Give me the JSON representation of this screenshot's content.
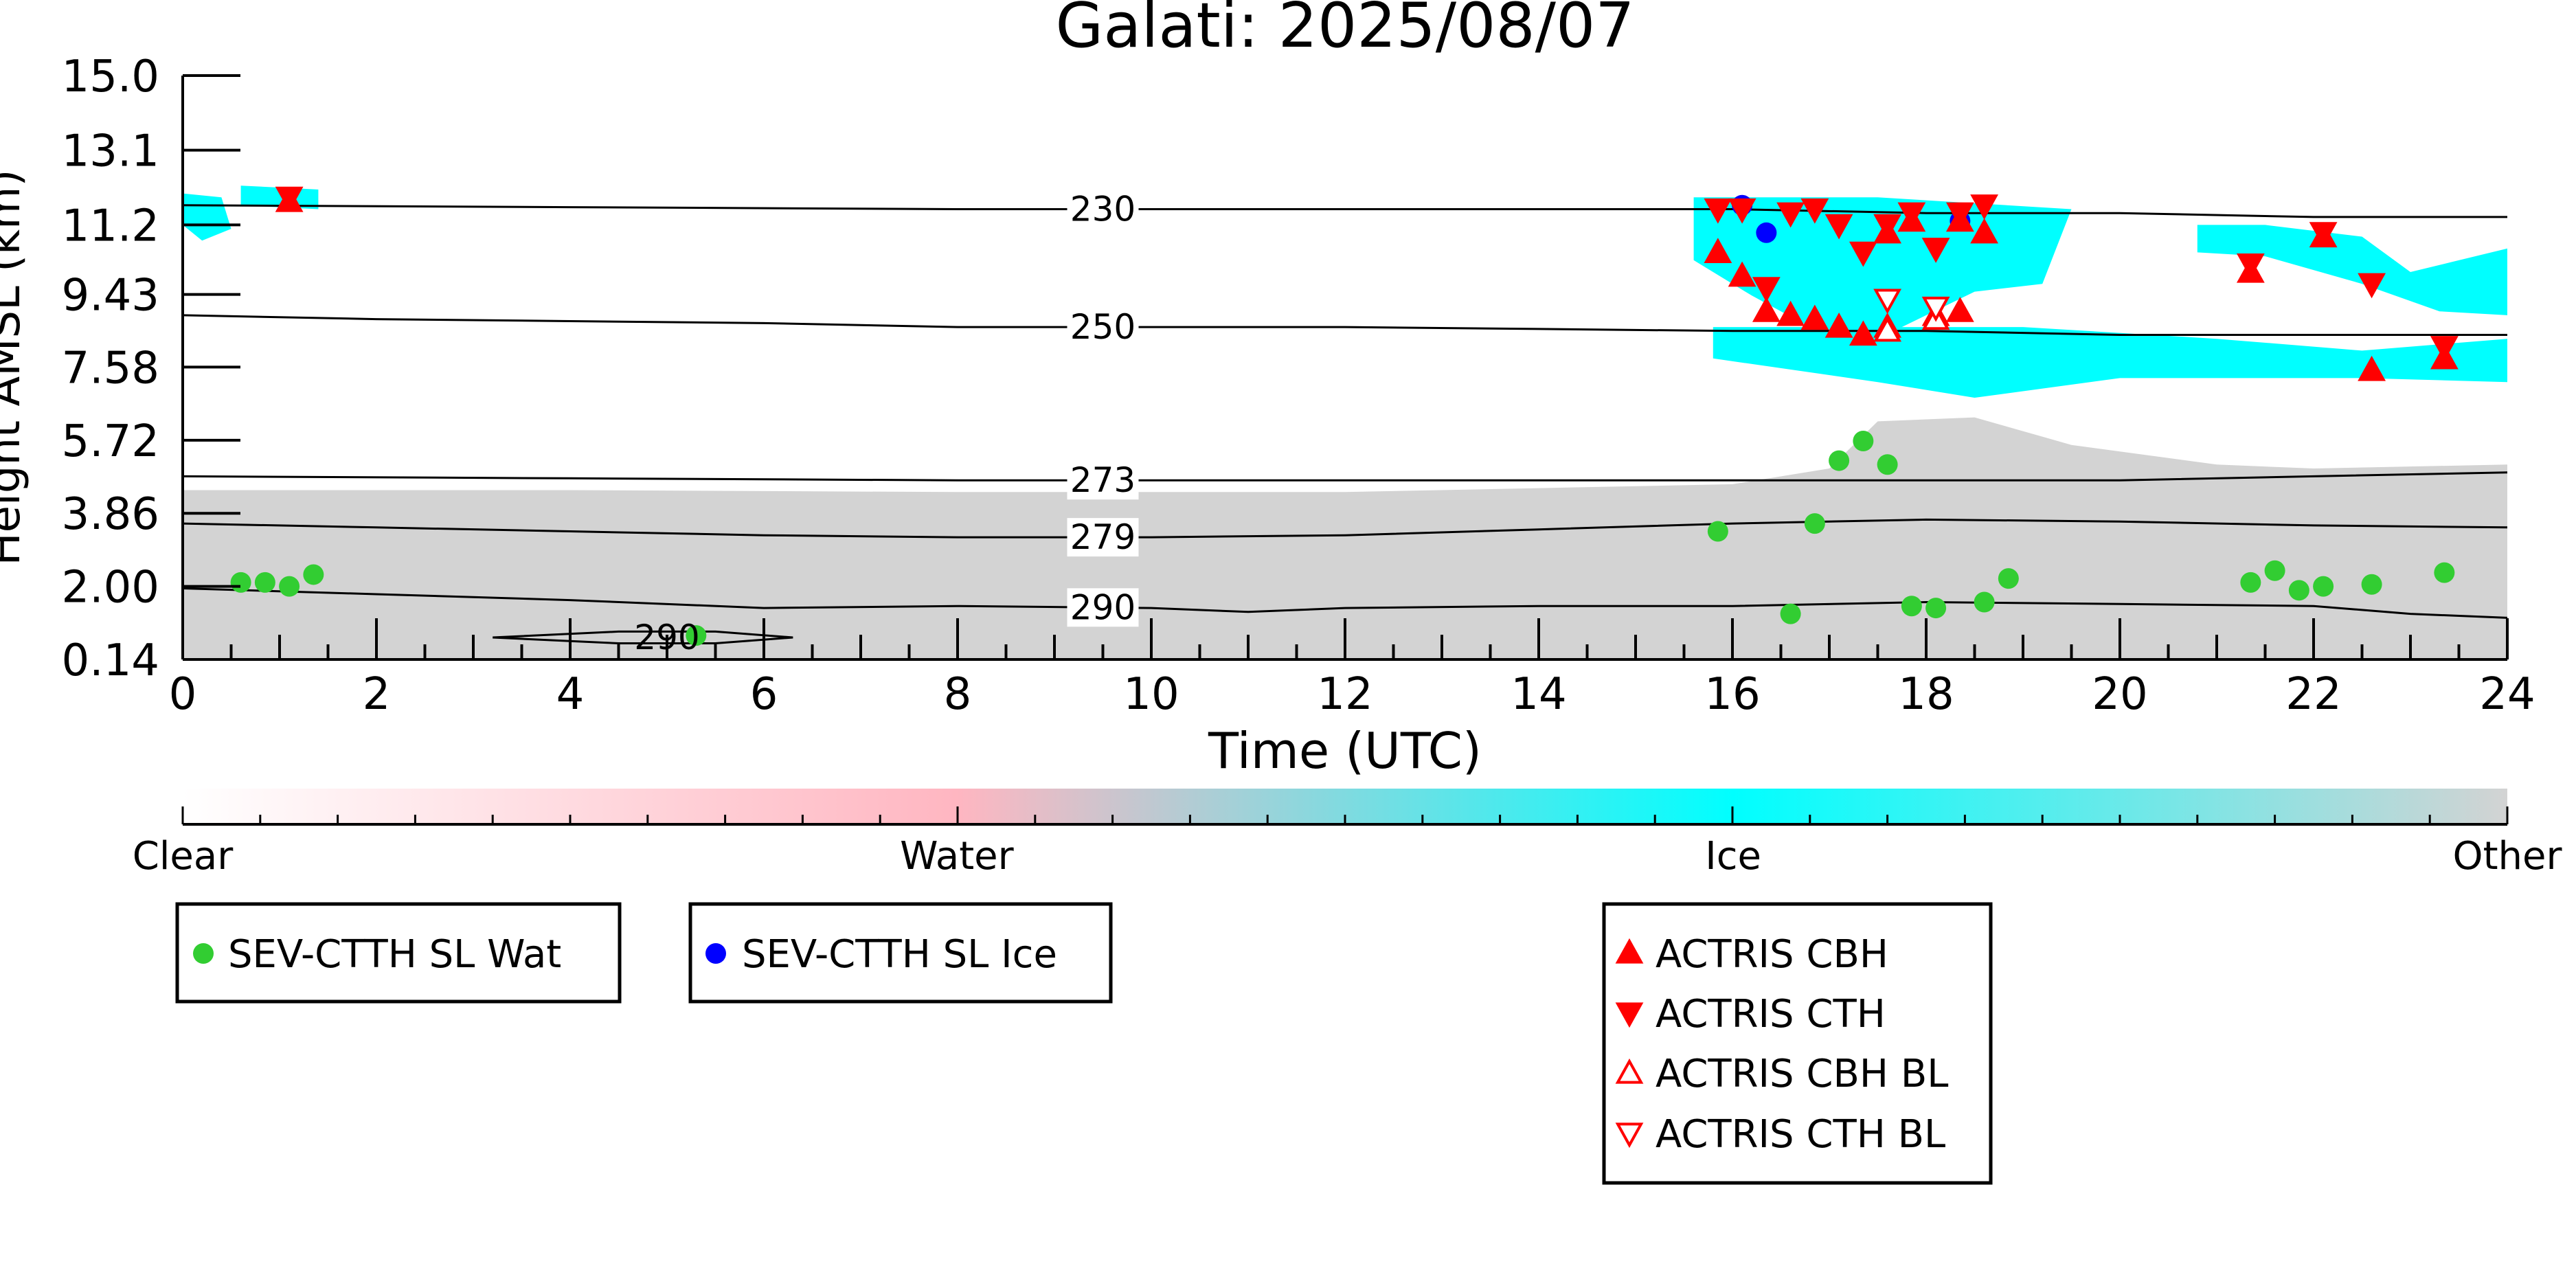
{
  "colors": {
    "clear": "#ffffff",
    "water": "#ffb6c1",
    "ice": "#00ffff",
    "other": "#d3d3d3",
    "sev_wat": "#32cd32",
    "sev_ice": "#0000ff",
    "actris": "#ff0000"
  },
  "chart_data": {
    "type": "scatter",
    "title": "Galati: 2025/08/07",
    "xlabel": "Time (UTC)",
    "ylabel": "Height AMSL (km)",
    "xlim": [
      0,
      24
    ],
    "ylim": [
      0.14,
      15.0
    ],
    "x_ticks": [
      "0",
      "2",
      "4",
      "6",
      "8",
      "10",
      "12",
      "14",
      "16",
      "18",
      "20",
      "22",
      "24"
    ],
    "y_ticks": [
      {
        "value": 15.0,
        "label": "15.0"
      },
      {
        "value": 13.1,
        "label": "13.1"
      },
      {
        "value": 11.2,
        "label": "11.2"
      },
      {
        "value": 9.43,
        "label": "9.43"
      },
      {
        "value": 7.58,
        "label": "7.58"
      },
      {
        "value": 5.72,
        "label": "5.72"
      },
      {
        "value": 3.86,
        "label": "3.86"
      },
      {
        "value": 2.0,
        "label": "2.00"
      },
      {
        "value": 0.14,
        "label": "0.14"
      }
    ],
    "colorbar": {
      "labels": [
        {
          "value": 0.0,
          "label": "Clear"
        },
        {
          "value": 0.333,
          "label": "Water"
        },
        {
          "value": 0.667,
          "label": "Ice"
        },
        {
          "value": 1.0,
          "label": "Other"
        }
      ]
    },
    "contours": [
      {
        "label": "230",
        "label_x": 9.5,
        "points": [
          [
            0,
            11.7
          ],
          [
            4,
            11.65
          ],
          [
            8,
            11.6
          ],
          [
            10,
            11.6
          ],
          [
            14,
            11.6
          ],
          [
            16,
            11.6
          ],
          [
            18,
            11.5
          ],
          [
            20,
            11.5
          ],
          [
            22,
            11.4
          ],
          [
            24,
            11.4
          ]
        ]
      },
      {
        "label": "250",
        "label_x": 9.5,
        "points": [
          [
            0,
            8.9
          ],
          [
            2,
            8.8
          ],
          [
            4,
            8.75
          ],
          [
            6,
            8.7
          ],
          [
            8,
            8.6
          ],
          [
            10,
            8.6
          ],
          [
            12,
            8.6
          ],
          [
            14,
            8.55
          ],
          [
            16,
            8.5
          ],
          [
            18,
            8.5
          ],
          [
            20,
            8.4
          ],
          [
            22,
            8.4
          ],
          [
            24,
            8.4
          ]
        ]
      },
      {
        "label": "273",
        "label_x": 9.5,
        "points": [
          [
            0,
            4.8
          ],
          [
            4,
            4.75
          ],
          [
            8,
            4.7
          ],
          [
            10,
            4.7
          ],
          [
            14,
            4.7
          ],
          [
            16,
            4.7
          ],
          [
            18,
            4.7
          ],
          [
            20,
            4.7
          ],
          [
            22,
            4.8
          ],
          [
            24,
            4.9
          ]
        ]
      },
      {
        "label": "279",
        "label_x": 9.5,
        "points": [
          [
            0,
            3.6
          ],
          [
            2,
            3.5
          ],
          [
            4,
            3.4
          ],
          [
            6,
            3.3
          ],
          [
            8,
            3.25
          ],
          [
            10,
            3.25
          ],
          [
            12,
            3.3
          ],
          [
            14,
            3.45
          ],
          [
            16,
            3.6
          ],
          [
            18,
            3.7
          ],
          [
            20,
            3.65
          ],
          [
            22,
            3.55
          ],
          [
            24,
            3.5
          ]
        ]
      },
      {
        "label": "290",
        "label_x": 9.5,
        "points": [
          [
            0,
            1.95
          ],
          [
            2,
            1.8
          ],
          [
            4,
            1.65
          ],
          [
            6,
            1.45
          ],
          [
            8,
            1.5
          ],
          [
            10,
            1.45
          ],
          [
            11,
            1.35
          ],
          [
            12,
            1.45
          ],
          [
            14,
            1.5
          ],
          [
            16,
            1.5
          ],
          [
            18,
            1.6
          ],
          [
            20,
            1.55
          ],
          [
            22,
            1.5
          ],
          [
            23,
            1.3
          ],
          [
            24,
            1.2
          ]
        ]
      },
      {
        "label": "290",
        "label_x": 5.0,
        "loop": true,
        "points": [
          [
            3.2,
            0.7
          ],
          [
            4.5,
            0.85
          ],
          [
            5.5,
            0.85
          ],
          [
            6.3,
            0.7
          ],
          [
            5.5,
            0.55
          ],
          [
            4.5,
            0.55
          ],
          [
            3.2,
            0.7
          ]
        ]
      }
    ],
    "regions": [
      {
        "class": "other",
        "points": [
          [
            0,
            4.45
          ],
          [
            4,
            4.45
          ],
          [
            8,
            4.4
          ],
          [
            12,
            4.4
          ],
          [
            14,
            4.5
          ],
          [
            16,
            4.6
          ],
          [
            17,
            5.0
          ],
          [
            17.5,
            6.2
          ],
          [
            18.5,
            6.3
          ],
          [
            19.5,
            5.6
          ],
          [
            21,
            5.1
          ],
          [
            22,
            5.0
          ],
          [
            24,
            5.1
          ],
          [
            24,
            0.14
          ],
          [
            0,
            0.14
          ]
        ]
      },
      {
        "class": "ice",
        "points": [
          [
            0,
            12.0
          ],
          [
            0.4,
            11.9
          ],
          [
            0.5,
            11.1
          ],
          [
            0.2,
            10.8
          ],
          [
            0,
            11.2
          ]
        ]
      },
      {
        "class": "ice",
        "points": [
          [
            0.6,
            12.2
          ],
          [
            1.4,
            12.1
          ],
          [
            1.4,
            11.6
          ],
          [
            0.6,
            11.7
          ]
        ]
      },
      {
        "class": "ice",
        "points": [
          [
            15.6,
            11.9
          ],
          [
            17.5,
            11.9
          ],
          [
            19.5,
            11.6
          ],
          [
            19.2,
            9.7
          ],
          [
            18.5,
            9.5
          ],
          [
            18.0,
            8.9
          ],
          [
            17.5,
            8.3
          ],
          [
            16.8,
            8.6
          ],
          [
            16.2,
            9.4
          ],
          [
            15.6,
            10.3
          ]
        ]
      },
      {
        "class": "ice",
        "points": [
          [
            15.8,
            8.6
          ],
          [
            19,
            8.6
          ],
          [
            21,
            8.3
          ],
          [
            22.5,
            8.0
          ],
          [
            24,
            8.3
          ],
          [
            24,
            7.2
          ],
          [
            22.5,
            7.3
          ],
          [
            20,
            7.3
          ],
          [
            18.5,
            6.8
          ],
          [
            17.5,
            7.2
          ],
          [
            15.8,
            7.8
          ]
        ]
      },
      {
        "class": "ice",
        "points": [
          [
            20.8,
            11.2
          ],
          [
            21.5,
            11.2
          ],
          [
            22.5,
            10.9
          ],
          [
            23.0,
            10.0
          ],
          [
            24,
            10.6
          ],
          [
            24,
            8.9
          ],
          [
            23.3,
            9.0
          ],
          [
            22.5,
            9.7
          ],
          [
            21.5,
            10.4
          ],
          [
            20.8,
            10.5
          ]
        ]
      }
    ],
    "series": [
      {
        "name": "SEV-CTTH SL Wat",
        "marker": "circle",
        "points": [
          [
            0.6,
            2.1
          ],
          [
            0.85,
            2.1
          ],
          [
            1.1,
            2.0
          ],
          [
            1.35,
            2.3
          ],
          [
            15.85,
            3.4
          ],
          [
            16.6,
            1.3
          ],
          [
            16.85,
            3.6
          ],
          [
            17.1,
            5.2
          ],
          [
            17.35,
            5.7
          ],
          [
            17.6,
            5.1
          ],
          [
            17.85,
            1.5
          ],
          [
            18.1,
            1.45
          ],
          [
            18.6,
            1.6
          ],
          [
            18.85,
            2.2
          ],
          [
            21.35,
            2.1
          ],
          [
            21.6,
            2.4
          ],
          [
            21.85,
            1.9
          ],
          [
            22.1,
            2.0
          ],
          [
            22.6,
            2.05
          ],
          [
            23.35,
            2.35
          ],
          [
            5.3,
            0.75
          ]
        ]
      },
      {
        "name": "SEV-CTTH SL Ice",
        "marker": "circle",
        "points": [
          [
            16.1,
            11.7
          ],
          [
            16.35,
            11.0
          ],
          [
            18.35,
            11.3
          ]
        ]
      },
      {
        "name": "ACTRIS CBH",
        "marker": "triangle-up",
        "points": [
          [
            1.1,
            11.8
          ],
          [
            15.85,
            10.5
          ],
          [
            16.1,
            9.9
          ],
          [
            16.35,
            9.0
          ],
          [
            16.6,
            8.9
          ],
          [
            16.85,
            8.8
          ],
          [
            17.1,
            8.6
          ],
          [
            17.35,
            8.4
          ],
          [
            17.6,
            8.6
          ],
          [
            17.6,
            11.0
          ],
          [
            17.85,
            11.3
          ],
          [
            18.1,
            8.9
          ],
          [
            18.35,
            9.0
          ],
          [
            18.35,
            11.3
          ],
          [
            18.6,
            11.0
          ],
          [
            21.35,
            10.0
          ],
          [
            22.1,
            10.9
          ],
          [
            22.6,
            7.5
          ],
          [
            23.35,
            7.8
          ]
        ]
      },
      {
        "name": "ACTRIS CTH",
        "marker": "triangle-down",
        "points": [
          [
            1.1,
            11.9
          ],
          [
            15.85,
            11.6
          ],
          [
            16.1,
            11.6
          ],
          [
            16.35,
            9.6
          ],
          [
            16.6,
            11.5
          ],
          [
            16.85,
            11.6
          ],
          [
            17.1,
            11.2
          ],
          [
            17.35,
            10.5
          ],
          [
            17.6,
            11.2
          ],
          [
            17.85,
            11.5
          ],
          [
            18.1,
            10.6
          ],
          [
            18.35,
            11.5
          ],
          [
            18.6,
            11.7
          ],
          [
            21.35,
            10.2
          ],
          [
            22.1,
            11.0
          ],
          [
            22.6,
            9.7
          ],
          [
            23.35,
            8.1
          ]
        ]
      },
      {
        "name": "ACTRIS CBH BL",
        "marker": "triangle-up-open",
        "points": [
          [
            17.6,
            8.5
          ],
          [
            18.1,
            8.8
          ]
        ]
      },
      {
        "name": "ACTRIS CTH BL",
        "marker": "triangle-down-open",
        "points": [
          [
            17.6,
            9.3
          ],
          [
            18.1,
            9.1
          ]
        ]
      }
    ],
    "legends": [
      {
        "entries": [
          "SEV-CTTH SL Wat"
        ]
      },
      {
        "entries": [
          "SEV-CTTH SL Ice"
        ]
      },
      {
        "entries": [
          "ACTRIS CBH",
          "ACTRIS CTH",
          "ACTRIS CBH BL",
          "ACTRIS CTH BL"
        ]
      }
    ]
  }
}
